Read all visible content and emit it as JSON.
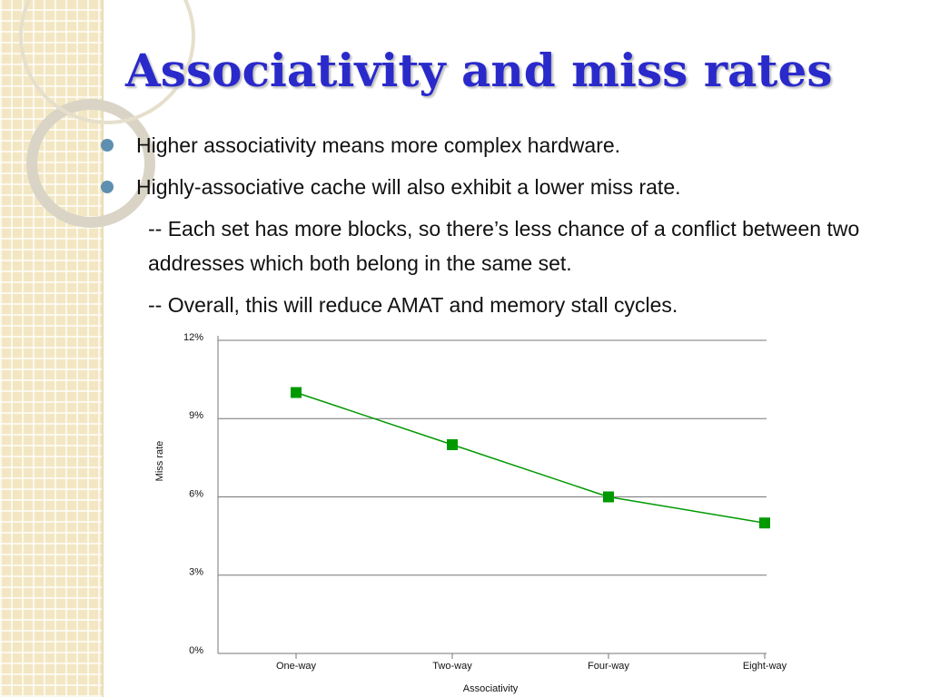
{
  "title": "Associativity and miss rates",
  "bullets": [
    "Higher associativity means more complex hardware.",
    "Highly-associative cache will also exhibit a lower miss rate."
  ],
  "sub_bullets": [
    "-- Each set has more blocks, so there’s less chance of a conflict between two addresses which both belong in the same set.",
    "-- Overall, this will reduce AMAT and memory stall cycles."
  ],
  "chart_data": {
    "type": "line",
    "categories": [
      "One-way",
      "Two-way",
      "Four-way",
      "Eight-way"
    ],
    "series": [
      {
        "name": "Miss rate",
        "color": "#009900",
        "values": [
          10,
          8,
          6,
          5
        ]
      }
    ],
    "y_label": "Miss rate",
    "x_label": "Associativity",
    "ylim": [
      0,
      12
    ],
    "yticks": [
      {
        "value": 0,
        "label": "0%"
      },
      {
        "value": 3,
        "label": "3%"
      },
      {
        "value": 6,
        "label": "6%"
      },
      {
        "value": 9,
        "label": "9%"
      },
      {
        "value": 12,
        "label": "12%"
      }
    ],
    "grid": true
  }
}
